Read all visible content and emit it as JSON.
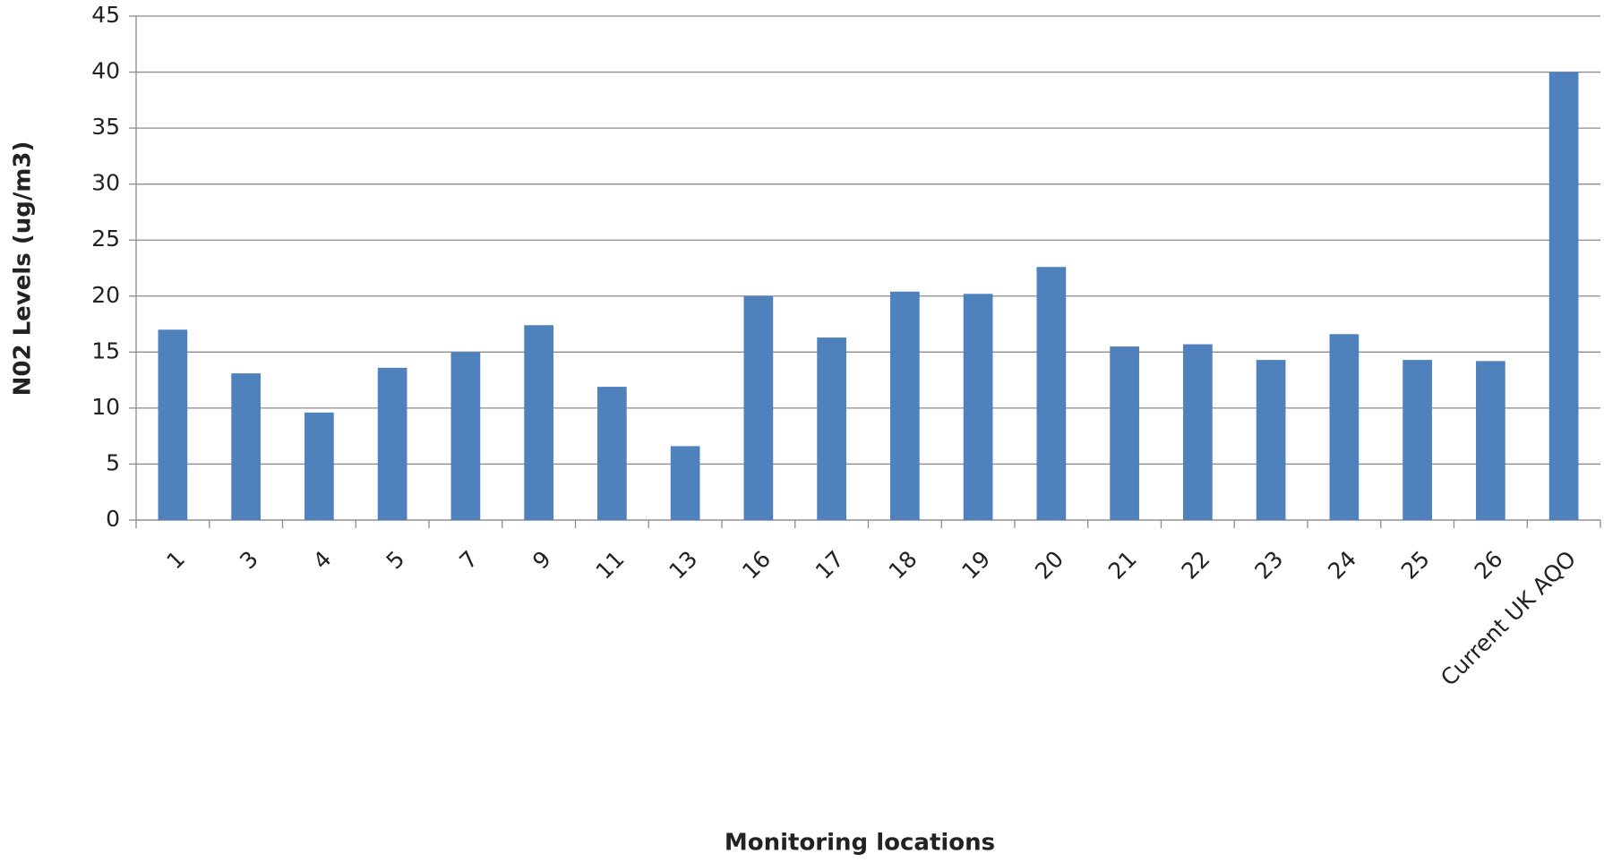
{
  "chart_data": {
    "type": "bar",
    "x_label": "Monitoring locations",
    "y_label": "N02 Levels (ug/m3)",
    "categories": [
      "1",
      "3",
      "4",
      "5",
      "7",
      "9",
      "11",
      "13",
      "16",
      "17",
      "18",
      "19",
      "20",
      "21",
      "22",
      "23",
      "24",
      "25",
      "26",
      "Current UK AQO"
    ],
    "values": [
      17.0,
      13.1,
      9.6,
      13.6,
      15.0,
      17.4,
      11.9,
      6.6,
      20.0,
      16.3,
      20.4,
      20.2,
      22.6,
      15.5,
      15.7,
      14.3,
      16.6,
      14.3,
      14.2,
      40
    ],
    "color": "#4f81bd",
    "ylim": [
      0,
      45
    ],
    "yticks": [
      0,
      5,
      10,
      15,
      20,
      25,
      30,
      35,
      40,
      45
    ],
    "grid": true
  }
}
